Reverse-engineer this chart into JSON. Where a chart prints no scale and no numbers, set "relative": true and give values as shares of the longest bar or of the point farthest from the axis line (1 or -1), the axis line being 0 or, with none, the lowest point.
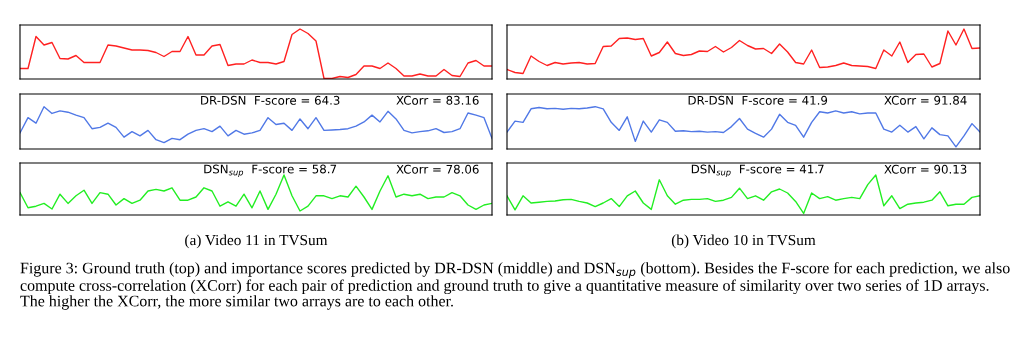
{
  "chart_data": [
    {
      "type": "line",
      "relative": true,
      "categories": [
        null,
        null,
        null,
        null,
        null,
        null,
        null,
        null,
        null,
        null,
        null,
        null,
        null,
        null,
        null,
        null,
        null,
        null,
        null,
        null,
        null,
        null,
        null,
        null,
        null,
        null,
        null,
        null,
        null,
        null,
        null,
        null,
        null,
        null,
        null,
        null,
        null,
        null,
        null,
        null,
        null,
        null,
        null,
        null,
        null,
        null,
        null,
        null,
        null,
        null,
        null,
        null,
        null,
        null,
        null,
        null,
        null,
        null,
        null,
        null
      ],
      "series": [
        {
          "color": "#ff2020",
          "values": [
            0.21,
            0.21,
            0.85,
            0.68,
            0.73,
            0.41,
            0.4,
            0.47,
            0.33,
            0.33,
            0.33,
            0.68,
            0.66,
            0.62,
            0.58,
            0.58,
            0.57,
            0.53,
            0.45,
            0.55,
            0.55,
            0.85,
            0.48,
            0.48,
            0.66,
            0.69,
            0.27,
            0.3,
            0.3,
            0.38,
            0.33,
            0.33,
            0.3,
            0.35,
            0.89,
            1.0,
            0.91,
            0.76,
            0.01,
            0.01,
            0.05,
            0.03,
            0.09,
            0.26,
            0.26,
            0.21,
            0.32,
            0.21,
            0.06,
            0.06,
            0.1,
            0.06,
            0.06,
            0.19,
            0.07,
            0.05,
            0.32,
            0.37,
            0.26,
            0.26
          ]
        }
      ]
    },
    {
      "type": "line",
      "relative": true,
      "categories": [
        null,
        null,
        null,
        null,
        null,
        null,
        null,
        null,
        null,
        null,
        null,
        null,
        null,
        null,
        null,
        null,
        null,
        null,
        null,
        null,
        null,
        null,
        null,
        null,
        null,
        null,
        null,
        null,
        null,
        null,
        null,
        null,
        null,
        null,
        null,
        null,
        null,
        null,
        null,
        null,
        null,
        null,
        null,
        null,
        null,
        null,
        null,
        null,
        null,
        null,
        null,
        null,
        null,
        null,
        null,
        null,
        null,
        null,
        null,
        null
      ],
      "series": [
        {
          "color": "#ff2020",
          "values": [
            0.19,
            0.13,
            0.11,
            0.46,
            0.35,
            0.27,
            0.33,
            0.3,
            0.32,
            0.33,
            0.3,
            0.31,
            0.65,
            0.66,
            0.81,
            0.82,
            0.79,
            0.81,
            0.46,
            0.53,
            0.74,
            0.51,
            0.47,
            0.49,
            0.56,
            0.55,
            0.65,
            0.54,
            0.63,
            0.77,
            0.67,
            0.6,
            0.61,
            0.51,
            0.7,
            0.54,
            0.33,
            0.3,
            0.58,
            0.23,
            0.24,
            0.27,
            0.32,
            0.27,
            0.26,
            0.25,
            0.21,
            0.58,
            0.46,
            0.74,
            0.33,
            0.49,
            0.5,
            0.24,
            0.31,
            0.96,
            0.68,
            1.0,
            0.61,
            0.62
          ]
        }
      ]
    },
    {
      "type": "line",
      "relative": true,
      "categories": [
        null,
        null,
        null,
        null,
        null,
        null,
        null,
        null,
        null,
        null,
        null,
        null,
        null,
        null,
        null,
        null,
        null,
        null,
        null,
        null,
        null,
        null,
        null,
        null,
        null,
        null,
        null,
        null,
        null,
        null,
        null,
        null,
        null,
        null,
        null,
        null,
        null,
        null,
        null,
        null,
        null,
        null,
        null,
        null,
        null,
        null,
        null,
        null,
        null,
        null,
        null,
        null,
        null,
        null,
        null,
        null,
        null,
        null,
        null,
        null
      ],
      "annotations": [
        "DR-DSN  F-score = 64.3",
        "XCorr = 83.16"
      ],
      "series": [
        {
          "color": "#5078e6",
          "values": [
            0.38,
            0.74,
            0.61,
            1.0,
            0.84,
            0.9,
            0.87,
            0.8,
            0.74,
            0.48,
            0.51,
            0.61,
            0.51,
            0.28,
            0.41,
            0.31,
            0.44,
            0.22,
            0.15,
            0.25,
            0.22,
            0.35,
            0.44,
            0.48,
            0.41,
            0.54,
            0.31,
            0.44,
            0.35,
            0.38,
            0.44,
            0.74,
            0.58,
            0.61,
            0.44,
            0.71,
            0.48,
            0.74,
            0.44,
            0.45,
            0.46,
            0.48,
            0.54,
            0.64,
            0.8,
            0.64,
            0.89,
            0.71,
            0.44,
            0.38,
            0.41,
            0.43,
            0.48,
            0.39,
            0.41,
            0.48,
            0.85,
            0.8,
            0.74,
            0.25
          ]
        }
      ]
    },
    {
      "type": "line",
      "relative": true,
      "categories": [
        null,
        null,
        null,
        null,
        null,
        null,
        null,
        null,
        null,
        null,
        null,
        null,
        null,
        null,
        null,
        null,
        null,
        null,
        null,
        null,
        null,
        null,
        null,
        null,
        null,
        null,
        null,
        null,
        null,
        null,
        null,
        null,
        null,
        null,
        null,
        null,
        null,
        null,
        null,
        null,
        null,
        null,
        null,
        null,
        null,
        null,
        null,
        null,
        null,
        null,
        null,
        null,
        null,
        null,
        null,
        null,
        null,
        null,
        null,
        null
      ],
      "annotations": [
        "DR-DSN  F-score = 41.9",
        "XCorr = 91.84"
      ],
      "series": [
        {
          "color": "#5078e6",
          "values": [
            0.4,
            0.66,
            0.63,
            0.95,
            0.98,
            0.95,
            0.96,
            0.94,
            0.96,
            0.95,
            0.97,
            1.0,
            0.95,
            0.63,
            0.44,
            0.76,
            0.18,
            0.66,
            0.4,
            0.69,
            0.63,
            0.42,
            0.43,
            0.41,
            0.42,
            0.4,
            0.41,
            0.39,
            0.53,
            0.72,
            0.47,
            0.37,
            0.28,
            0.47,
            0.82,
            0.63,
            0.56,
            0.28,
            0.63,
            0.88,
            0.85,
            0.9,
            0.85,
            0.88,
            0.83,
            0.85,
            0.85,
            0.47,
            0.4,
            0.56,
            0.4,
            0.53,
            0.24,
            0.5,
            0.34,
            0.31,
            0.05,
            0.31,
            0.6,
            0.4
          ]
        }
      ]
    },
    {
      "type": "line",
      "relative": true,
      "xlabel": "(a) Video 11 in TVSum",
      "categories": [
        null,
        null,
        null,
        null,
        null,
        null,
        null,
        null,
        null,
        null,
        null,
        null,
        null,
        null,
        null,
        null,
        null,
        null,
        null,
        null,
        null,
        null,
        null,
        null,
        null,
        null,
        null,
        null,
        null,
        null,
        null,
        null,
        null,
        null,
        null,
        null,
        null,
        null,
        null,
        null,
        null,
        null,
        null,
        null,
        null,
        null,
        null,
        null,
        null,
        null,
        null,
        null,
        null,
        null,
        null,
        null,
        null,
        null,
        null,
        null
      ],
      "annotations": [
        "DSN$_{sup}$  F-score = 58.7",
        "XCorr = 78.06"
      ],
      "series": [
        {
          "color": "#22ee22",
          "values": [
            0.56,
            0.18,
            0.22,
            0.29,
            0.15,
            0.52,
            0.29,
            0.48,
            0.62,
            0.29,
            0.56,
            0.52,
            0.25,
            0.41,
            0.29,
            0.37,
            0.6,
            0.64,
            0.6,
            0.68,
            0.37,
            0.37,
            0.45,
            0.68,
            0.6,
            0.22,
            0.33,
            0.22,
            0.52,
            0.18,
            0.6,
            0.14,
            0.52,
            1.0,
            0.48,
            0.1,
            0.22,
            0.48,
            0.48,
            0.41,
            0.48,
            0.45,
            0.72,
            0.45,
            0.14,
            0.6,
            0.98,
            0.45,
            0.52,
            0.48,
            0.52,
            0.41,
            0.45,
            0.45,
            0.56,
            0.48,
            0.25,
            0.14,
            0.25,
            0.29
          ]
        }
      ]
    },
    {
      "type": "line",
      "relative": true,
      "xlabel": "(b) Video 10 in TVSum",
      "categories": [
        null,
        null,
        null,
        null,
        null,
        null,
        null,
        null,
        null,
        null,
        null,
        null,
        null,
        null,
        null,
        null,
        null,
        null,
        null,
        null,
        null,
        null,
        null,
        null,
        null,
        null,
        null,
        null,
        null,
        null,
        null,
        null,
        null,
        null,
        null,
        null,
        null,
        null,
        null,
        null,
        null,
        null,
        null,
        null,
        null,
        null,
        null,
        null,
        null,
        null,
        null,
        null,
        null,
        null,
        null,
        null,
        null,
        null,
        null,
        null
      ],
      "annotations": [
        "DSN$_{sup}$  F-score = 41.7",
        "XCorr = 90.13",
        "Figure 3: Ground truth (top) and importance scores predicted by DR-DSN (middle) and DSN$_{sup}$ (bottom). Besides the F-score for each prediction, we also compute cross-correlation (XCorr) for each pair of prediction and ground truth to give a quantitative measure of similarity over two series of 1D arrays. The higher the XCorr, the more similar two arrays are to each other."
      ],
      "series": [
        {
          "color": "#22ee22",
          "values": [
            0.48,
            0.13,
            0.48,
            0.3,
            0.32,
            0.34,
            0.35,
            0.38,
            0.39,
            0.34,
            0.3,
            0.21,
            0.3,
            0.41,
            0.21,
            0.48,
            0.6,
            0.3,
            0.14,
            0.88,
            0.48,
            0.27,
            0.37,
            0.39,
            0.39,
            0.41,
            0.34,
            0.37,
            0.44,
            0.67,
            0.41,
            0.48,
            0.37,
            0.58,
            0.65,
            0.55,
            0.34,
            0.04,
            0.55,
            0.41,
            0.46,
            0.37,
            0.41,
            0.44,
            0.41,
            0.76,
            1.0,
            0.23,
            0.48,
            0.16,
            0.27,
            0.3,
            0.32,
            0.37,
            0.58,
            0.23,
            0.27,
            0.27,
            0.44,
            0.48
          ]
        }
      ]
    }
  ]
}
